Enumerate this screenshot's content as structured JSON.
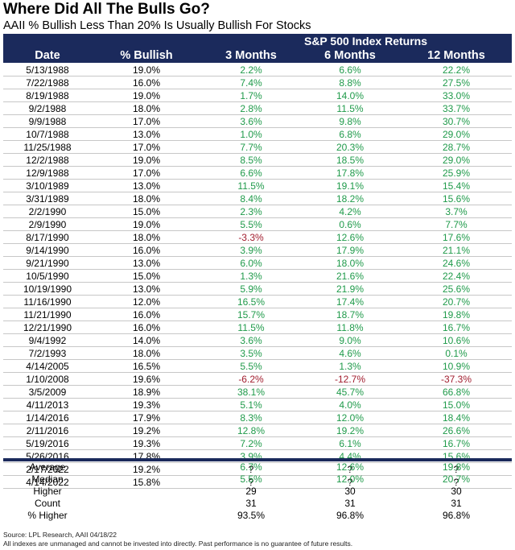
{
  "title": "Where Did All The Bulls Go?",
  "subtitle": "AAII % Bullish Less Than 20% Is Usually Bullish For Stocks",
  "header": {
    "group": "S&P 500 Index Returns",
    "columns": [
      "Date",
      "% Bullish",
      "3 Months",
      "6 Months",
      "12 Months"
    ]
  },
  "colors": {
    "header_bg": "#1b2a5c",
    "positive": "#1f9a4a",
    "negative": "#a11d2e"
  },
  "rows": [
    {
      "date": "5/13/1988",
      "bullish": "19.0%",
      "m3": "2.2%",
      "m6": "6.6%",
      "m12": "22.2%"
    },
    {
      "date": "7/22/1988",
      "bullish": "16.0%",
      "m3": "7.4%",
      "m6": "8.8%",
      "m12": "27.5%"
    },
    {
      "date": "8/19/1988",
      "bullish": "19.0%",
      "m3": "1.7%",
      "m6": "14.0%",
      "m12": "33.0%"
    },
    {
      "date": "9/2/1988",
      "bullish": "18.0%",
      "m3": "2.8%",
      "m6": "11.5%",
      "m12": "33.7%"
    },
    {
      "date": "9/9/1988",
      "bullish": "17.0%",
      "m3": "3.6%",
      "m6": "9.8%",
      "m12": "30.7%"
    },
    {
      "date": "10/7/1988",
      "bullish": "13.0%",
      "m3": "1.0%",
      "m6": "6.8%",
      "m12": "29.0%"
    },
    {
      "date": "11/25/1988",
      "bullish": "17.0%",
      "m3": "7.7%",
      "m6": "20.3%",
      "m12": "28.7%"
    },
    {
      "date": "12/2/1988",
      "bullish": "19.0%",
      "m3": "8.5%",
      "m6": "18.5%",
      "m12": "29.0%"
    },
    {
      "date": "12/9/1988",
      "bullish": "17.0%",
      "m3": "6.6%",
      "m6": "17.8%",
      "m12": "25.9%"
    },
    {
      "date": "3/10/1989",
      "bullish": "13.0%",
      "m3": "11.5%",
      "m6": "19.1%",
      "m12": "15.4%"
    },
    {
      "date": "3/31/1989",
      "bullish": "18.0%",
      "m3": "8.4%",
      "m6": "18.2%",
      "m12": "15.6%"
    },
    {
      "date": "2/2/1990",
      "bullish": "15.0%",
      "m3": "2.3%",
      "m6": "4.2%",
      "m12": "3.7%"
    },
    {
      "date": "2/9/1990",
      "bullish": "19.0%",
      "m3": "5.5%",
      "m6": "0.6%",
      "m12": "7.7%"
    },
    {
      "date": "8/17/1990",
      "bullish": "18.0%",
      "m3": "-3.3%",
      "m6": "12.6%",
      "m12": "17.6%"
    },
    {
      "date": "9/14/1990",
      "bullish": "16.0%",
      "m3": "3.9%",
      "m6": "17.9%",
      "m12": "21.1%"
    },
    {
      "date": "9/21/1990",
      "bullish": "13.0%",
      "m3": "6.0%",
      "m6": "18.0%",
      "m12": "24.6%"
    },
    {
      "date": "10/5/1990",
      "bullish": "15.0%",
      "m3": "1.3%",
      "m6": "21.6%",
      "m12": "22.4%"
    },
    {
      "date": "10/19/1990",
      "bullish": "13.0%",
      "m3": "5.9%",
      "m6": "21.9%",
      "m12": "25.6%"
    },
    {
      "date": "11/16/1990",
      "bullish": "12.0%",
      "m3": "16.5%",
      "m6": "17.4%",
      "m12": "20.7%"
    },
    {
      "date": "11/21/1990",
      "bullish": "16.0%",
      "m3": "15.7%",
      "m6": "18.7%",
      "m12": "19.8%"
    },
    {
      "date": "12/21/1990",
      "bullish": "16.0%",
      "m3": "11.5%",
      "m6": "11.8%",
      "m12": "16.7%"
    },
    {
      "date": "9/4/1992",
      "bullish": "14.0%",
      "m3": "3.6%",
      "m6": "9.0%",
      "m12": "10.6%"
    },
    {
      "date": "7/2/1993",
      "bullish": "18.0%",
      "m3": "3.5%",
      "m6": "4.6%",
      "m12": "0.1%"
    },
    {
      "date": "4/14/2005",
      "bullish": "16.5%",
      "m3": "5.5%",
      "m6": "1.3%",
      "m12": "10.9%"
    },
    {
      "date": "1/10/2008",
      "bullish": "19.6%",
      "m3": "-6.2%",
      "m6": "-12.7%",
      "m12": "-37.3%"
    },
    {
      "date": "3/5/2009",
      "bullish": "18.9%",
      "m3": "38.1%",
      "m6": "45.7%",
      "m12": "66.8%"
    },
    {
      "date": "4/11/2013",
      "bullish": "19.3%",
      "m3": "5.1%",
      "m6": "4.0%",
      "m12": "15.0%"
    },
    {
      "date": "1/14/2016",
      "bullish": "17.9%",
      "m3": "8.3%",
      "m6": "12.0%",
      "m12": "18.4%"
    },
    {
      "date": "2/11/2016",
      "bullish": "19.2%",
      "m3": "12.8%",
      "m6": "19.2%",
      "m12": "26.6%"
    },
    {
      "date": "5/19/2016",
      "bullish": "19.3%",
      "m3": "7.2%",
      "m6": "6.1%",
      "m12": "16.7%"
    },
    {
      "date": "5/26/2016",
      "bullish": "17.8%",
      "m3": "3.9%",
      "m6": "4.4%",
      "m12": "15.6%"
    },
    {
      "date": "2/17/2022",
      "bullish": "19.2%",
      "m3": "?",
      "m6": "?",
      "m12": "?"
    },
    {
      "date": "4/14/2022",
      "bullish": "15.8%",
      "m3": "?",
      "m6": "?",
      "m12": "?"
    }
  ],
  "summary": [
    {
      "label": "Average",
      "m3": "6.7%",
      "m6": "12.6%",
      "m12": "19.8%",
      "green": true
    },
    {
      "label": "Median",
      "m3": "5.5%",
      "m6": "12.0%",
      "m12": "20.7%",
      "green": true
    },
    {
      "label": "Higher",
      "m3": "29",
      "m6": "30",
      "m12": "30",
      "green": false
    },
    {
      "label": "Count",
      "m3": "31",
      "m6": "31",
      "m12": "31",
      "green": false
    },
    {
      "label": "% Higher",
      "m3": "93.5%",
      "m6": "96.8%",
      "m12": "96.8%",
      "green": false
    }
  ],
  "footer": {
    "source": "Source: LPL Research, AAII 04/18/22",
    "disclaimer": "All indexes are unmanaged and cannot be invested into directly. Past performance is no guarantee of future results."
  }
}
